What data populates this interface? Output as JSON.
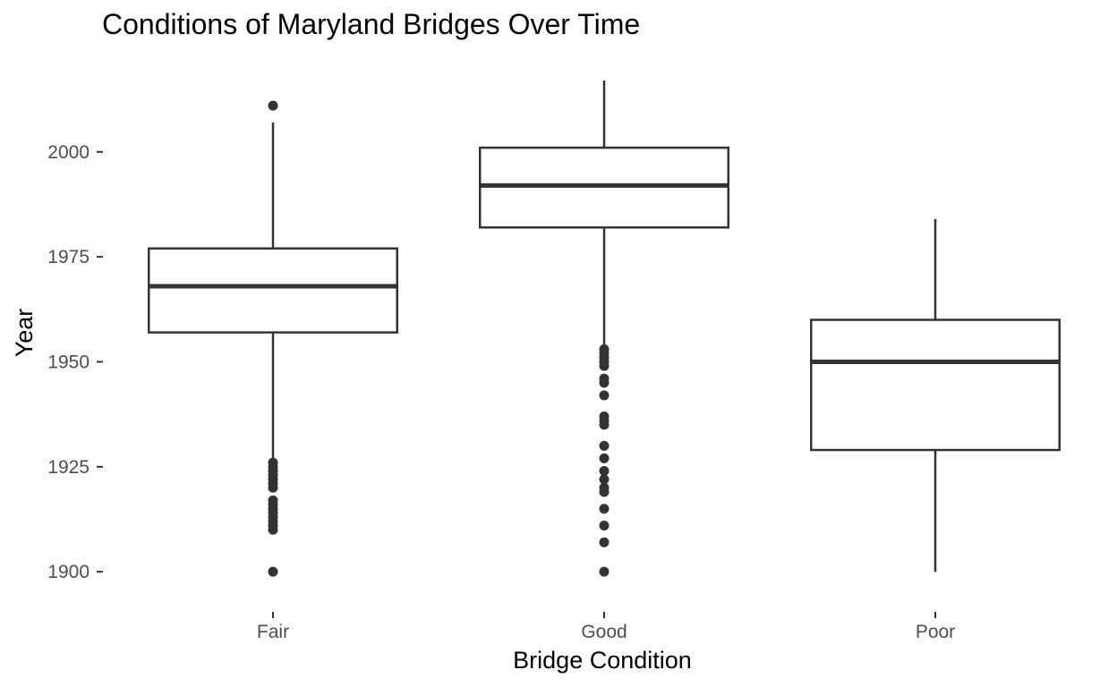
{
  "chart_data": {
    "type": "boxplot",
    "title": "Conditions of Maryland Bridges Over Time",
    "xlabel": "Bridge Condition",
    "ylabel": "Year",
    "categories": [
      "Fair",
      "Good",
      "Poor"
    ],
    "ylim": [
      1893,
      2017
    ],
    "yticks": [
      1900,
      1925,
      1950,
      1975,
      2000
    ],
    "grid": false,
    "legend": "none",
    "boxes": [
      {
        "category": "Fair",
        "whisker_low": 1927,
        "q1": 1957,
        "median": 1968,
        "q3": 1977,
        "whisker_high": 2007,
        "outliers": [
          1900,
          1910,
          1911,
          1912,
          1913,
          1914,
          1915,
          1916,
          1917,
          1920,
          1921,
          1922,
          1923,
          1924,
          1925,
          1926,
          2011
        ]
      },
      {
        "category": "Good",
        "whisker_low": 1954,
        "q1": 1982,
        "median": 1992,
        "q3": 2001,
        "whisker_high": 2017,
        "outliers": [
          1900,
          1907,
          1911,
          1915,
          1919,
          1920,
          1922,
          1924,
          1927,
          1930,
          1935,
          1936,
          1937,
          1942,
          1945,
          1946,
          1949,
          1950,
          1951,
          1952,
          1953
        ]
      },
      {
        "category": "Poor",
        "whisker_low": 1900,
        "q1": 1929,
        "median": 1950,
        "q3": 1960,
        "whisker_high": 1984,
        "outliers": []
      }
    ]
  },
  "colors": {
    "box_stroke": "#333333",
    "box_fill": "#ffffff",
    "outlier": "#333333",
    "tick_label": "#4d4d4d",
    "title": "#000000"
  }
}
